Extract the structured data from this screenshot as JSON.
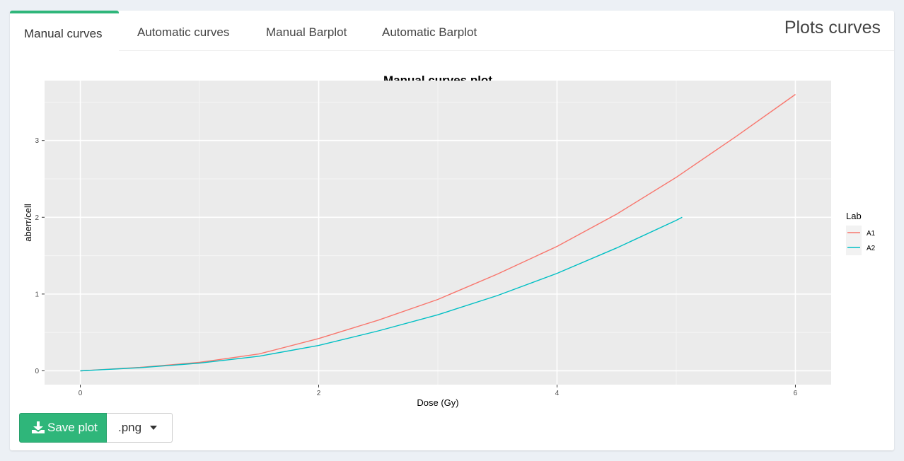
{
  "tabs": [
    {
      "label": "Manual curves",
      "active": true
    },
    {
      "label": "Automatic curves",
      "active": false
    },
    {
      "label": "Manual Barplot",
      "active": false
    },
    {
      "label": "Automatic Barplot",
      "active": false
    }
  ],
  "box_title": "Plots curves",
  "save_button": {
    "label": "Save plot",
    "icon": "download-icon",
    "color": "#2fb67a"
  },
  "format_select": {
    "value": ".png"
  },
  "chart_data": {
    "type": "line",
    "title": "Manual curves plot",
    "xlabel": "Dose (Gy)",
    "ylabel": "aberr/cell",
    "xlim": [
      -0.3,
      6.3
    ],
    "ylim": [
      -0.18,
      3.78
    ],
    "xticks": [
      0,
      2,
      4,
      6
    ],
    "yticks": [
      0,
      1,
      2,
      3
    ],
    "grid": true,
    "legend": {
      "title": "Lab",
      "position": "right"
    },
    "series": [
      {
        "name": "A1",
        "color": "#F8766D",
        "x": [
          0,
          0.5,
          1,
          1.5,
          2,
          2.5,
          3,
          3.5,
          4,
          4.5,
          5,
          5.5,
          6
        ],
        "y": [
          0,
          0.045,
          0.11,
          0.22,
          0.42,
          0.66,
          0.93,
          1.26,
          1.62,
          2.04,
          2.52,
          3.05,
          3.6
        ]
      },
      {
        "name": "A2",
        "color": "#00BFC4",
        "x": [
          0,
          0.5,
          1,
          1.5,
          2,
          2.5,
          3,
          3.5,
          4,
          4.5,
          5,
          5.05
        ],
        "y": [
          0,
          0.04,
          0.1,
          0.19,
          0.33,
          0.52,
          0.73,
          0.98,
          1.27,
          1.6,
          1.96,
          2.0
        ]
      }
    ]
  }
}
